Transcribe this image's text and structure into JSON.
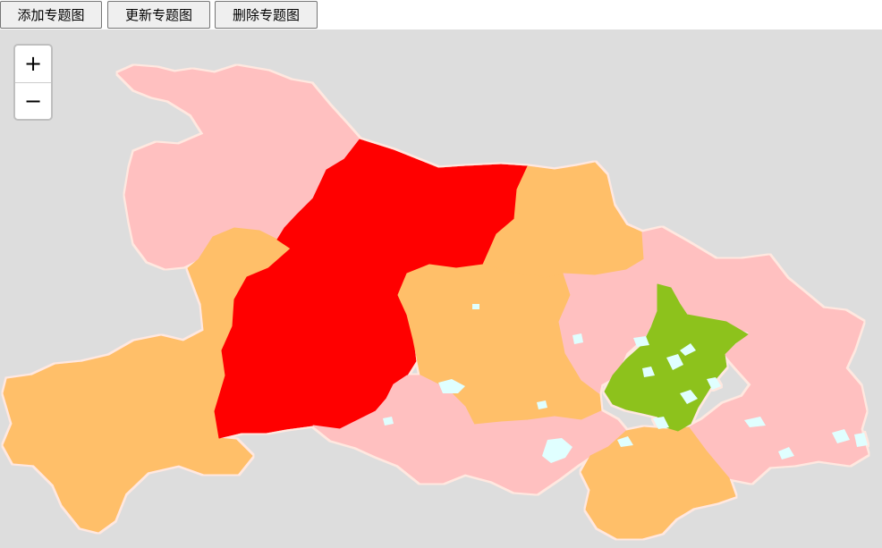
{
  "toolbar": {
    "add_label": "添加专题图",
    "update_label": "更新专题图",
    "delete_label": "删除专题图"
  },
  "zoom": {
    "in_label": "+",
    "out_label": "−"
  },
  "colors": {
    "background": "#dddddd",
    "class_pink": "#ffc0c0",
    "class_orange": "#ffbf69",
    "class_red": "#ff0000",
    "class_green": "#8dc21f",
    "water": "#e0ffff",
    "border": "#ffe8e0"
  },
  "map": {
    "regions": [
      {
        "class": "pink"
      },
      {
        "class": "red"
      },
      {
        "class": "orange"
      },
      {
        "class": "orange"
      },
      {
        "class": "orange"
      },
      {
        "class": "orange"
      },
      {
        "class": "pink"
      },
      {
        "class": "pink"
      },
      {
        "class": "orange"
      },
      {
        "class": "green"
      }
    ]
  }
}
